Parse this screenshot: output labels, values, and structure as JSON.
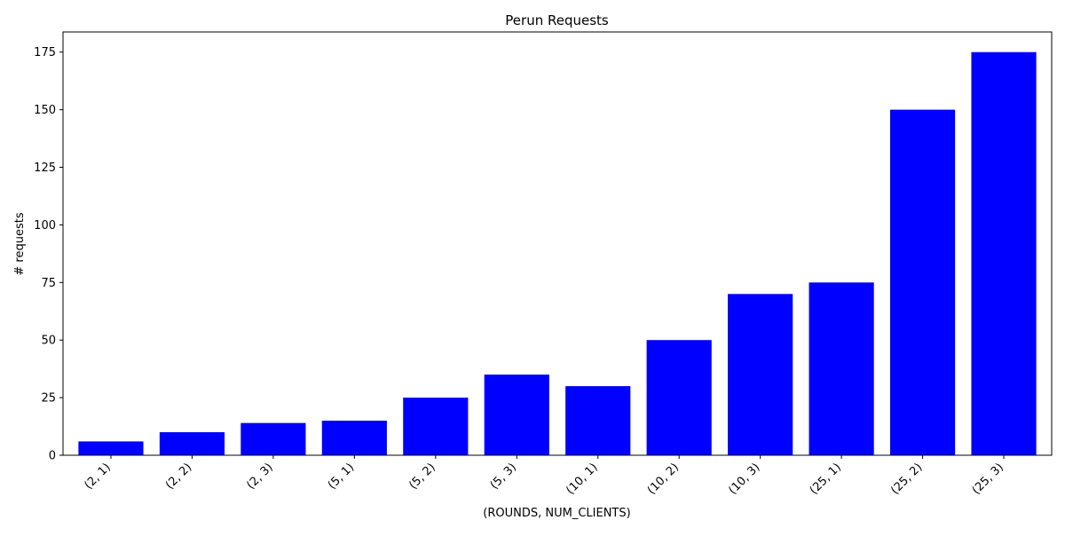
{
  "chart_data": {
    "type": "bar",
    "title": "Perun Requests",
    "xlabel": "(ROUNDS, NUM_CLIENTS)",
    "ylabel": "# requests",
    "categories": [
      "(2, 1)",
      "(2, 2)",
      "(2, 3)",
      "(5, 1)",
      "(5, 2)",
      "(5, 3)",
      "(10, 1)",
      "(10, 2)",
      "(10, 3)",
      "(25, 1)",
      "(25, 2)",
      "(25, 3)"
    ],
    "values": [
      6,
      10,
      14,
      15,
      25,
      35,
      30,
      50,
      70,
      75,
      150,
      175
    ],
    "ylim": [
      0,
      183.75
    ],
    "yticks": [
      0,
      25,
      50,
      75,
      100,
      125,
      150,
      175
    ],
    "grid": false,
    "legend": "none",
    "bar_color": "#0000ff"
  }
}
